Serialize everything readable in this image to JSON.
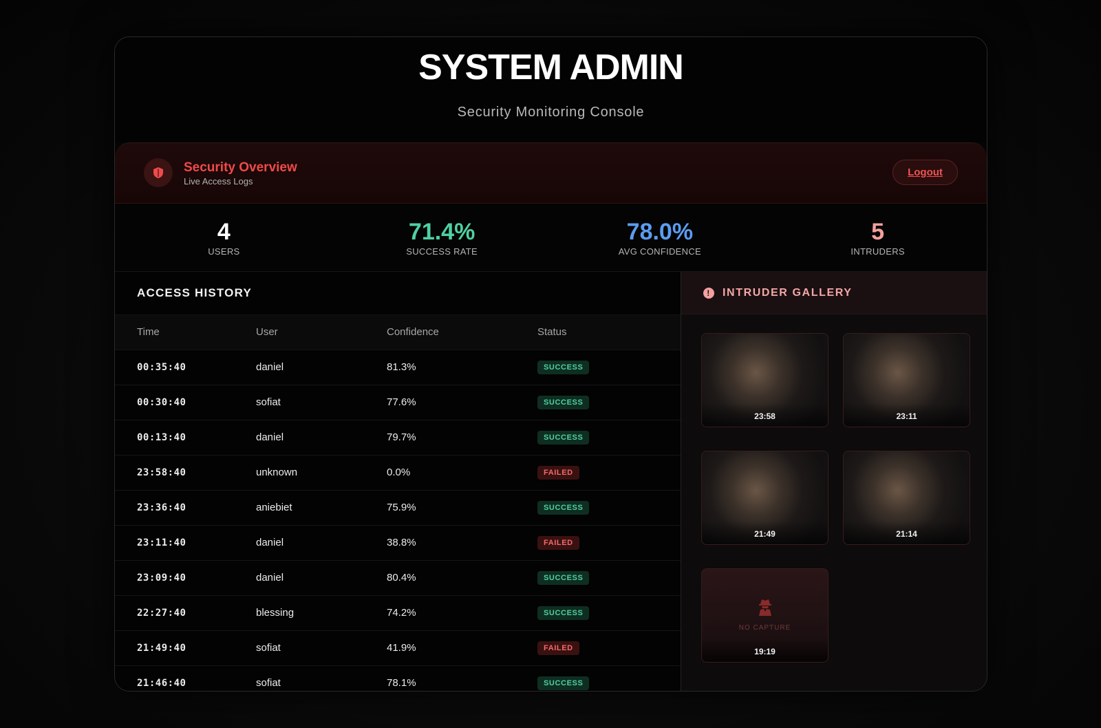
{
  "header": {
    "title": "SYSTEM ADMIN",
    "subtitle": "Security Monitoring Console"
  },
  "overview": {
    "title": "Security Overview",
    "subtitle": "Live Access Logs",
    "logout_label": "Logout"
  },
  "stats": [
    {
      "value": "4",
      "label": "USERS",
      "color": "#ffffff"
    },
    {
      "value": "71.4%",
      "label": "SUCCESS RATE",
      "color": "#4fd1a1"
    },
    {
      "value": "78.0%",
      "label": "AVG CONFIDENCE",
      "color": "#5b9cf0"
    },
    {
      "value": "5",
      "label": "INTRUDERS",
      "color": "#f4a0a0"
    }
  ],
  "history": {
    "title": "ACCESS HISTORY",
    "columns": [
      "Time",
      "User",
      "Confidence",
      "Status"
    ],
    "rows": [
      {
        "time": "00:35:40",
        "user": "daniel",
        "confidence": "81.3%",
        "status": "SUCCESS"
      },
      {
        "time": "00:30:40",
        "user": "sofiat",
        "confidence": "77.6%",
        "status": "SUCCESS"
      },
      {
        "time": "00:13:40",
        "user": "daniel",
        "confidence": "79.7%",
        "status": "SUCCESS"
      },
      {
        "time": "23:58:40",
        "user": "unknown",
        "confidence": "0.0%",
        "status": "FAILED"
      },
      {
        "time": "23:36:40",
        "user": "aniebiet",
        "confidence": "75.9%",
        "status": "SUCCESS"
      },
      {
        "time": "23:11:40",
        "user": "daniel",
        "confidence": "38.8%",
        "status": "FAILED"
      },
      {
        "time": "23:09:40",
        "user": "daniel",
        "confidence": "80.4%",
        "status": "SUCCESS"
      },
      {
        "time": "22:27:40",
        "user": "blessing",
        "confidence": "74.2%",
        "status": "SUCCESS"
      },
      {
        "time": "21:49:40",
        "user": "sofiat",
        "confidence": "41.9%",
        "status": "FAILED"
      },
      {
        "time": "21:46:40",
        "user": "sofiat",
        "confidence": "78.1%",
        "status": "SUCCESS"
      }
    ]
  },
  "gallery": {
    "title": "INTRUDER GALLERY",
    "no_capture_label": "NO CAPTURE",
    "items": [
      {
        "time": "23:58",
        "captured": true
      },
      {
        "time": "23:11",
        "captured": true
      },
      {
        "time": "21:49",
        "captured": true
      },
      {
        "time": "21:14",
        "captured": true
      },
      {
        "time": "19:19",
        "captured": false
      }
    ]
  }
}
